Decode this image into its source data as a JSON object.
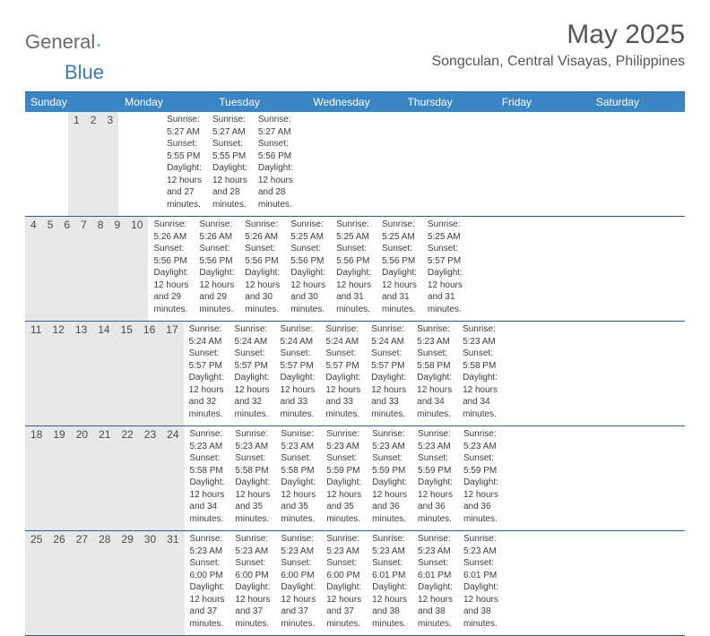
{
  "logo": {
    "text_general": "General",
    "text_blue": "Blue"
  },
  "header": {
    "month_title": "May 2025",
    "location": "Songculan, Central Visayas, Philippines"
  },
  "colors": {
    "header_bg": "#3a86c4",
    "header_text": "#ffffff",
    "daynum_bg": "#e8e8e8",
    "week_border": "#2f5f8a",
    "body_text": "#3d3d3d",
    "title_text": "#555555"
  },
  "days_of_week": [
    "Sunday",
    "Monday",
    "Tuesday",
    "Wednesday",
    "Thursday",
    "Friday",
    "Saturday"
  ],
  "weeks": [
    [
      {
        "n": "",
        "sr": "",
        "ss": "",
        "dl1": "",
        "dl2": ""
      },
      {
        "n": "",
        "sr": "",
        "ss": "",
        "dl1": "",
        "dl2": ""
      },
      {
        "n": "",
        "sr": "",
        "ss": "",
        "dl1": "",
        "dl2": ""
      },
      {
        "n": "",
        "sr": "",
        "ss": "",
        "dl1": "",
        "dl2": ""
      },
      {
        "n": "1",
        "sr": "Sunrise: 5:27 AM",
        "ss": "Sunset: 5:55 PM",
        "dl1": "Daylight: 12 hours",
        "dl2": "and 27 minutes."
      },
      {
        "n": "2",
        "sr": "Sunrise: 5:27 AM",
        "ss": "Sunset: 5:55 PM",
        "dl1": "Daylight: 12 hours",
        "dl2": "and 28 minutes."
      },
      {
        "n": "3",
        "sr": "Sunrise: 5:27 AM",
        "ss": "Sunset: 5:56 PM",
        "dl1": "Daylight: 12 hours",
        "dl2": "and 28 minutes."
      }
    ],
    [
      {
        "n": "4",
        "sr": "Sunrise: 5:26 AM",
        "ss": "Sunset: 5:56 PM",
        "dl1": "Daylight: 12 hours",
        "dl2": "and 29 minutes."
      },
      {
        "n": "5",
        "sr": "Sunrise: 5:26 AM",
        "ss": "Sunset: 5:56 PM",
        "dl1": "Daylight: 12 hours",
        "dl2": "and 29 minutes."
      },
      {
        "n": "6",
        "sr": "Sunrise: 5:26 AM",
        "ss": "Sunset: 5:56 PM",
        "dl1": "Daylight: 12 hours",
        "dl2": "and 30 minutes."
      },
      {
        "n": "7",
        "sr": "Sunrise: 5:25 AM",
        "ss": "Sunset: 5:56 PM",
        "dl1": "Daylight: 12 hours",
        "dl2": "and 30 minutes."
      },
      {
        "n": "8",
        "sr": "Sunrise: 5:25 AM",
        "ss": "Sunset: 5:56 PM",
        "dl1": "Daylight: 12 hours",
        "dl2": "and 31 minutes."
      },
      {
        "n": "9",
        "sr": "Sunrise: 5:25 AM",
        "ss": "Sunset: 5:56 PM",
        "dl1": "Daylight: 12 hours",
        "dl2": "and 31 minutes."
      },
      {
        "n": "10",
        "sr": "Sunrise: 5:25 AM",
        "ss": "Sunset: 5:57 PM",
        "dl1": "Daylight: 12 hours",
        "dl2": "and 31 minutes."
      }
    ],
    [
      {
        "n": "11",
        "sr": "Sunrise: 5:24 AM",
        "ss": "Sunset: 5:57 PM",
        "dl1": "Daylight: 12 hours",
        "dl2": "and 32 minutes."
      },
      {
        "n": "12",
        "sr": "Sunrise: 5:24 AM",
        "ss": "Sunset: 5:57 PM",
        "dl1": "Daylight: 12 hours",
        "dl2": "and 32 minutes."
      },
      {
        "n": "13",
        "sr": "Sunrise: 5:24 AM",
        "ss": "Sunset: 5:57 PM",
        "dl1": "Daylight: 12 hours",
        "dl2": "and 33 minutes."
      },
      {
        "n": "14",
        "sr": "Sunrise: 5:24 AM",
        "ss": "Sunset: 5:57 PM",
        "dl1": "Daylight: 12 hours",
        "dl2": "and 33 minutes."
      },
      {
        "n": "15",
        "sr": "Sunrise: 5:24 AM",
        "ss": "Sunset: 5:57 PM",
        "dl1": "Daylight: 12 hours",
        "dl2": "and 33 minutes."
      },
      {
        "n": "16",
        "sr": "Sunrise: 5:23 AM",
        "ss": "Sunset: 5:58 PM",
        "dl1": "Daylight: 12 hours",
        "dl2": "and 34 minutes."
      },
      {
        "n": "17",
        "sr": "Sunrise: 5:23 AM",
        "ss": "Sunset: 5:58 PM",
        "dl1": "Daylight: 12 hours",
        "dl2": "and 34 minutes."
      }
    ],
    [
      {
        "n": "18",
        "sr": "Sunrise: 5:23 AM",
        "ss": "Sunset: 5:58 PM",
        "dl1": "Daylight: 12 hours",
        "dl2": "and 34 minutes."
      },
      {
        "n": "19",
        "sr": "Sunrise: 5:23 AM",
        "ss": "Sunset: 5:58 PM",
        "dl1": "Daylight: 12 hours",
        "dl2": "and 35 minutes."
      },
      {
        "n": "20",
        "sr": "Sunrise: 5:23 AM",
        "ss": "Sunset: 5:58 PM",
        "dl1": "Daylight: 12 hours",
        "dl2": "and 35 minutes."
      },
      {
        "n": "21",
        "sr": "Sunrise: 5:23 AM",
        "ss": "Sunset: 5:59 PM",
        "dl1": "Daylight: 12 hours",
        "dl2": "and 35 minutes."
      },
      {
        "n": "22",
        "sr": "Sunrise: 5:23 AM",
        "ss": "Sunset: 5:59 PM",
        "dl1": "Daylight: 12 hours",
        "dl2": "and 36 minutes."
      },
      {
        "n": "23",
        "sr": "Sunrise: 5:23 AM",
        "ss": "Sunset: 5:59 PM",
        "dl1": "Daylight: 12 hours",
        "dl2": "and 36 minutes."
      },
      {
        "n": "24",
        "sr": "Sunrise: 5:23 AM",
        "ss": "Sunset: 5:59 PM",
        "dl1": "Daylight: 12 hours",
        "dl2": "and 36 minutes."
      }
    ],
    [
      {
        "n": "25",
        "sr": "Sunrise: 5:23 AM",
        "ss": "Sunset: 6:00 PM",
        "dl1": "Daylight: 12 hours",
        "dl2": "and 37 minutes."
      },
      {
        "n": "26",
        "sr": "Sunrise: 5:23 AM",
        "ss": "Sunset: 6:00 PM",
        "dl1": "Daylight: 12 hours",
        "dl2": "and 37 minutes."
      },
      {
        "n": "27",
        "sr": "Sunrise: 5:23 AM",
        "ss": "Sunset: 6:00 PM",
        "dl1": "Daylight: 12 hours",
        "dl2": "and 37 minutes."
      },
      {
        "n": "28",
        "sr": "Sunrise: 5:23 AM",
        "ss": "Sunset: 6:00 PM",
        "dl1": "Daylight: 12 hours",
        "dl2": "and 37 minutes."
      },
      {
        "n": "29",
        "sr": "Sunrise: 5:23 AM",
        "ss": "Sunset: 6:01 PM",
        "dl1": "Daylight: 12 hours",
        "dl2": "and 38 minutes."
      },
      {
        "n": "30",
        "sr": "Sunrise: 5:23 AM",
        "ss": "Sunset: 6:01 PM",
        "dl1": "Daylight: 12 hours",
        "dl2": "and 38 minutes."
      },
      {
        "n": "31",
        "sr": "Sunrise: 5:23 AM",
        "ss": "Sunset: 6:01 PM",
        "dl1": "Daylight: 12 hours",
        "dl2": "and 38 minutes."
      }
    ]
  ]
}
